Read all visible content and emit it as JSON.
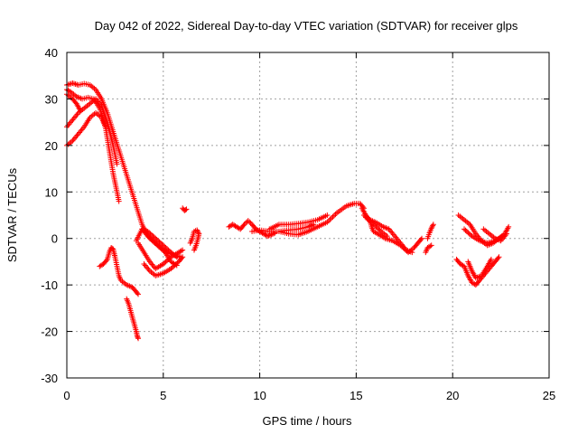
{
  "chart_data": {
    "type": "scatter",
    "title": "Day 042 of 2022, Sidereal Day-to-day VTEC variation (SDTVAR) for receiver glps",
    "xlabel": "GPS time / hours",
    "ylabel": "SDTVAR / TECUs",
    "xlim": [
      0,
      25
    ],
    "ylim": [
      -30,
      40
    ],
    "xticks": [
      0,
      5,
      10,
      15,
      20,
      25
    ],
    "yticks": [
      -30,
      -20,
      -10,
      0,
      10,
      20,
      30,
      40
    ],
    "grid": true,
    "marker": "+",
    "color": "#ff0000",
    "series": [
      {
        "name": "SDTVAR",
        "tracks": [
          [
            [
              0.0,
              33.0
            ],
            [
              0.3,
              33.4
            ],
            [
              0.6,
              33.0
            ],
            [
              0.9,
              33.3
            ],
            [
              1.2,
              33.0
            ],
            [
              1.5,
              32.0
            ],
            [
              1.8,
              30.0
            ],
            [
              2.1,
              27.0
            ],
            [
              2.4,
              23.0
            ],
            [
              2.7,
              19.0
            ],
            [
              3.0,
              15.0
            ],
            [
              3.3,
              11.0
            ],
            [
              3.6,
              7.0
            ],
            [
              3.9,
              3.0
            ],
            [
              4.2,
              0.5
            ],
            [
              4.6,
              -1.0
            ],
            [
              5.0,
              -2.5
            ],
            [
              5.5,
              -3.5
            ],
            [
              5.9,
              -4.0
            ]
          ],
          [
            [
              0.0,
              32.0
            ],
            [
              0.2,
              31.5
            ],
            [
              0.5,
              30.5
            ],
            [
              0.8,
              30.0
            ],
            [
              1.1,
              30.3
            ],
            [
              1.4,
              30.0
            ],
            [
              1.7,
              28.0
            ],
            [
              2.0,
              24.0
            ],
            [
              2.2,
              19.0
            ],
            [
              2.4,
              14.0
            ],
            [
              2.6,
              10.0
            ],
            [
              2.7,
              8.0
            ]
          ],
          [
            [
              0.0,
              24.0
            ],
            [
              0.3,
              25.5
            ],
            [
              0.6,
              27.0
            ],
            [
              0.9,
              28.0
            ],
            [
              1.2,
              29.0
            ],
            [
              1.5,
              30.0
            ],
            [
              1.8,
              28.5
            ],
            [
              2.1,
              25.0
            ],
            [
              2.4,
              20.0
            ],
            [
              2.6,
              16.0
            ]
          ],
          [
            [
              0.0,
              20.0
            ],
            [
              0.3,
              21.0
            ],
            [
              0.6,
              22.5
            ],
            [
              0.9,
              24.0
            ],
            [
              1.2,
              26.0
            ],
            [
              1.5,
              27.0
            ],
            [
              1.8,
              26.0
            ],
            [
              2.0,
              24.0
            ]
          ],
          [
            [
              0.0,
              31.0
            ],
            [
              0.3,
              30.0
            ],
            [
              0.5,
              29.0
            ],
            [
              0.7,
              27.5
            ]
          ],
          [
            [
              3.7,
              -1.0
            ],
            [
              4.0,
              -3.0
            ],
            [
              4.3,
              -5.0
            ],
            [
              4.6,
              -6.5
            ],
            [
              5.0,
              -5.5
            ],
            [
              5.4,
              -4.0
            ],
            [
              5.8,
              -3.0
            ],
            [
              6.0,
              -2.5
            ]
          ],
          [
            [
              4.0,
              -5.5
            ],
            [
              4.3,
              -7.0
            ],
            [
              4.6,
              -8.0
            ],
            [
              5.0,
              -7.5
            ],
            [
              5.4,
              -6.5
            ],
            [
              5.8,
              -5.0
            ],
            [
              6.0,
              -4.0
            ]
          ],
          [
            [
              3.9,
              2.0
            ],
            [
              4.3,
              0.0
            ],
            [
              4.7,
              -1.5
            ],
            [
              5.1,
              -3.0
            ],
            [
              5.4,
              -5.0
            ],
            [
              5.7,
              -5.8
            ]
          ],
          [
            [
              3.6,
              -0.5
            ],
            [
              3.9,
              2.0
            ],
            [
              4.2,
              1.5
            ],
            [
              4.6,
              0.0
            ],
            [
              5.0,
              -1.5
            ],
            [
              5.4,
              -3.0
            ],
            [
              5.7,
              -4.0
            ]
          ],
          [
            [
              1.7,
              -6.0
            ],
            [
              1.9,
              -5.5
            ],
            [
              2.1,
              -4.5
            ],
            [
              2.2,
              -3.0
            ],
            [
              2.3,
              -2.0
            ],
            [
              2.4,
              -2.3
            ],
            [
              2.5,
              -4.0
            ],
            [
              2.6,
              -6.0
            ],
            [
              2.7,
              -8.0
            ],
            [
              2.8,
              -9.0
            ],
            [
              3.1,
              -10.0
            ],
            [
              3.4,
              -10.5
            ],
            [
              3.6,
              -11.5
            ],
            [
              3.7,
              -12.0
            ]
          ],
          [
            [
              3.1,
              -13.0
            ],
            [
              3.2,
              -14.0
            ],
            [
              3.3,
              -15.5
            ],
            [
              3.4,
              -17.0
            ],
            [
              3.5,
              -18.5
            ],
            [
              3.6,
              -20.0
            ],
            [
              3.65,
              -21.0
            ],
            [
              3.7,
              -21.5
            ]
          ],
          [
            [
              6.6,
              -2.5
            ],
            [
              6.7,
              -1.5
            ],
            [
              6.8,
              0.0
            ],
            [
              6.85,
              1.0
            ],
            [
              6.75,
              1.8
            ],
            [
              6.6,
              1.5
            ],
            [
              6.5,
              0.0
            ],
            [
              6.4,
              -1.0
            ]
          ],
          [
            [
              6.0,
              6.5
            ],
            [
              6.1,
              6.0
            ],
            [
              6.2,
              6.3
            ]
          ],
          [
            [
              8.4,
              2.5
            ],
            [
              8.6,
              3.0
            ],
            [
              8.8,
              2.5
            ],
            [
              9.0,
              2.0
            ],
            [
              9.2,
              3.0
            ],
            [
              9.4,
              3.8
            ],
            [
              9.6,
              3.0
            ],
            [
              9.8,
              2.0
            ],
            [
              10.0,
              1.5
            ],
            [
              10.2,
              1.0
            ],
            [
              10.4,
              0.5
            ],
            [
              10.6,
              0.8
            ],
            [
              10.8,
              1.2
            ]
          ],
          [
            [
              9.6,
              1.5
            ],
            [
              10.0,
              1.8
            ],
            [
              10.5,
              1.5
            ],
            [
              11.0,
              1.5
            ],
            [
              11.5,
              1.0
            ],
            [
              12.0,
              0.8
            ],
            [
              12.5,
              1.5
            ],
            [
              13.0,
              2.5
            ],
            [
              13.5,
              3.5
            ],
            [
              14.0,
              5.5
            ],
            [
              14.5,
              7.0
            ],
            [
              14.9,
              7.5
            ],
            [
              15.2,
              7.5
            ],
            [
              15.4,
              6.5
            ]
          ],
          [
            [
              10.5,
              2.0
            ],
            [
              11.0,
              3.0
            ],
            [
              11.5,
              3.0
            ],
            [
              12.0,
              3.2
            ],
            [
              12.5,
              3.5
            ],
            [
              13.0,
              4.0
            ],
            [
              13.5,
              5.0
            ]
          ],
          [
            [
              11.0,
              1.5
            ],
            [
              11.5,
              1.8
            ],
            [
              12.0,
              2.0
            ],
            [
              12.5,
              2.5
            ],
            [
              12.8,
              3.0
            ]
          ],
          [
            [
              15.3,
              6.5
            ],
            [
              15.5,
              5.0
            ],
            [
              15.7,
              4.0
            ],
            [
              15.8,
              2.5
            ],
            [
              15.9,
              1.5
            ],
            [
              16.2,
              0.8
            ],
            [
              16.5,
              0.0
            ],
            [
              16.9,
              -0.5
            ],
            [
              17.3,
              -1.5
            ],
            [
              17.7,
              -3.0
            ],
            [
              18.0,
              -2.0
            ],
            [
              18.2,
              -1.0
            ],
            [
              18.4,
              0.0
            ]
          ],
          [
            [
              15.4,
              5.0
            ],
            [
              15.7,
              4.0
            ],
            [
              16.0,
              3.5
            ],
            [
              16.4,
              2.5
            ],
            [
              16.7,
              2.0
            ],
            [
              17.0,
              0.5
            ],
            [
              17.3,
              -1.0
            ],
            [
              17.6,
              -2.5
            ],
            [
              17.9,
              -3.0
            ]
          ],
          [
            [
              15.5,
              4.5
            ],
            [
              15.9,
              3.0
            ],
            [
              16.3,
              1.5
            ],
            [
              16.6,
              0.5
            ]
          ],
          [
            [
              18.6,
              -3.0
            ],
            [
              18.7,
              -2.0
            ],
            [
              18.9,
              -1.5
            ]
          ],
          [
            [
              18.7,
              0.0
            ],
            [
              18.8,
              1.2
            ],
            [
              18.9,
              2.2
            ],
            [
              19.0,
              3.0
            ]
          ],
          [
            [
              20.3,
              5.0
            ],
            [
              20.6,
              4.0
            ],
            [
              20.9,
              3.0
            ],
            [
              21.2,
              1.0
            ],
            [
              21.5,
              -0.5
            ],
            [
              21.8,
              -1.5
            ],
            [
              22.1,
              -1.0
            ],
            [
              22.4,
              0.0
            ],
            [
              22.7,
              1.0
            ],
            [
              22.9,
              2.5
            ]
          ],
          [
            [
              20.6,
              2.0
            ],
            [
              21.0,
              0.5
            ],
            [
              21.4,
              -0.5
            ],
            [
              21.8,
              -1.0
            ],
            [
              22.2,
              -0.5
            ],
            [
              22.6,
              0.5
            ]
          ],
          [
            [
              21.6,
              2.0
            ],
            [
              21.9,
              1.0
            ],
            [
              22.2,
              0.0
            ],
            [
              22.5,
              -0.5
            ],
            [
              22.8,
              1.0
            ]
          ],
          [
            [
              20.2,
              -4.5
            ],
            [
              20.4,
              -5.5
            ],
            [
              20.6,
              -6.0
            ],
            [
              20.8,
              -8.0
            ],
            [
              21.0,
              -9.5
            ],
            [
              21.2,
              -10.0
            ],
            [
              21.4,
              -9.0
            ],
            [
              21.7,
              -7.5
            ],
            [
              22.0,
              -6.0
            ],
            [
              22.2,
              -5.0
            ],
            [
              22.4,
              -4.0
            ]
          ],
          [
            [
              20.8,
              -5.0
            ],
            [
              21.0,
              -7.0
            ],
            [
              21.2,
              -8.5
            ],
            [
              21.5,
              -8.0
            ],
            [
              21.8,
              -6.0
            ],
            [
              22.0,
              -4.5
            ]
          ]
        ]
      }
    ]
  }
}
